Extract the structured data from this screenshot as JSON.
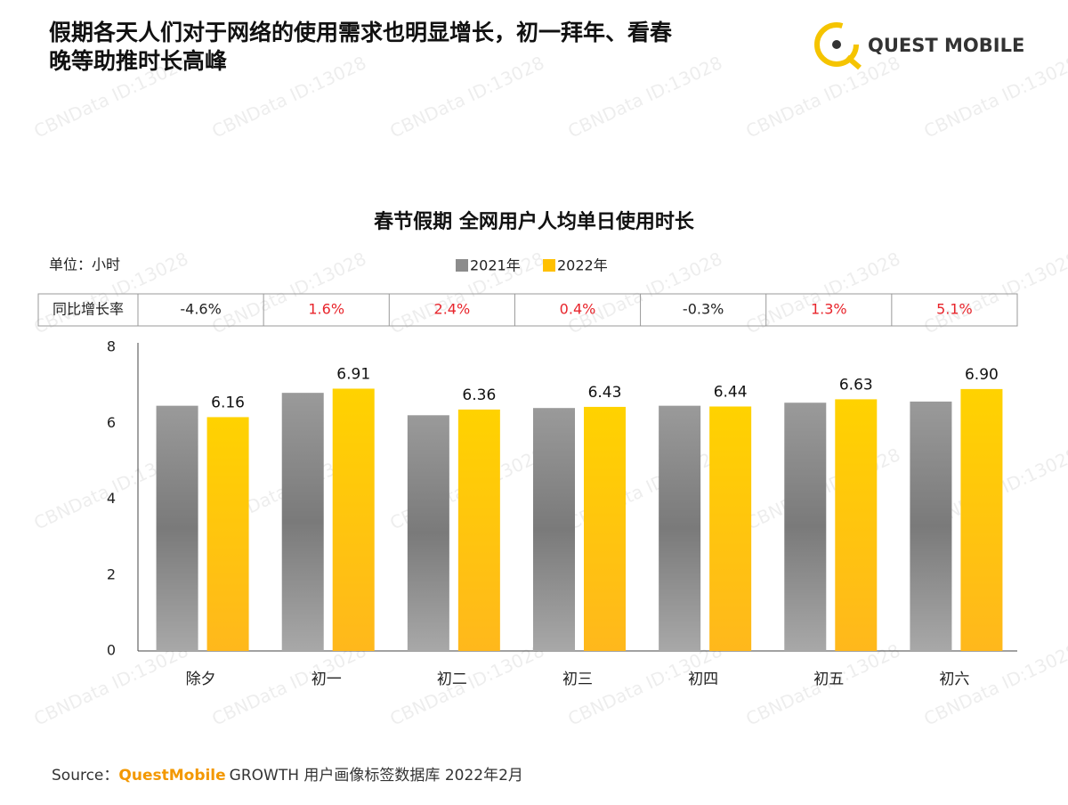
{
  "header": {
    "title_line1": "假期各天人们对于网络的使用需求也明显增长，初一拜年、看春",
    "title_line2": "晚等助推时长高峰",
    "logo": "QUEST MOBILE"
  },
  "watermark": "CBNData ID:13028",
  "chart_data": {
    "type": "bar",
    "title": "春节假期 全网用户人均单日使用时长",
    "unit": "单位：小时",
    "categories": [
      "除夕",
      "初一",
      "初二",
      "初三",
      "初四",
      "初五",
      "初六"
    ],
    "series": [
      {
        "name": "2021年",
        "color": "#8c8c8c",
        "values": [
          6.46,
          6.8,
          6.21,
          6.4,
          6.46,
          6.54,
          6.57
        ]
      },
      {
        "name": "2022年",
        "color": "#ffc000",
        "values": [
          6.16,
          6.91,
          6.36,
          6.43,
          6.44,
          6.63,
          6.9
        ],
        "value_labels": [
          "6.16",
          "6.91",
          "6.36",
          "6.43",
          "6.44",
          "6.63",
          "6.90"
        ]
      }
    ],
    "growth": {
      "label": "同比增长率",
      "values": [
        -4.6,
        1.6,
        2.4,
        0.4,
        -0.3,
        1.3,
        5.1
      ],
      "value_labels": [
        "-4.6%",
        "1.6%",
        "2.4%",
        "0.4%",
        "-0.3%",
        "1.3%",
        "5.1%"
      ]
    },
    "ylim": [
      0,
      8
    ],
    "yticks": [
      0,
      2,
      4,
      6,
      8
    ],
    "grid": false
  },
  "source": {
    "prefix": "Source：",
    "brand": "QuestMobile",
    "rest": "GROWTH 用户画像标签数据库 2022年2月"
  }
}
